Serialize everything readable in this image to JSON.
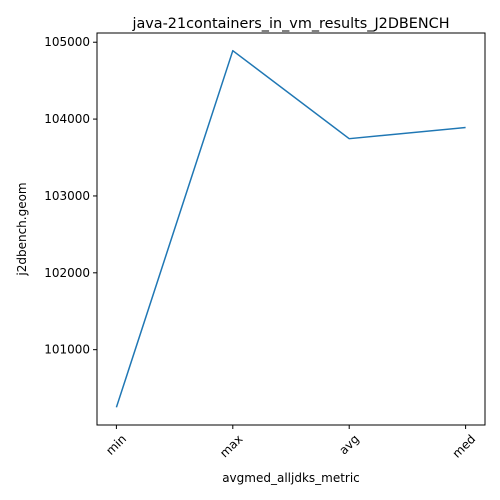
{
  "chart_data": {
    "type": "line",
    "title": "java-21containers_in_vm_results_J2DBENCH",
    "xlabel": "avgmed_alljdks_metric",
    "ylabel": "j2dbench.geom",
    "categories": [
      "min",
      "max",
      "avg",
      "med"
    ],
    "series": [
      {
        "values": [
          100250,
          104890,
          103745,
          103890
        ],
        "color": "#1f77b4"
      }
    ],
    "y_ticks": [
      101000,
      102000,
      103000,
      104000,
      105000
    ],
    "ylim": [
      100020,
      105120
    ],
    "grid": false,
    "legend": "none"
  }
}
